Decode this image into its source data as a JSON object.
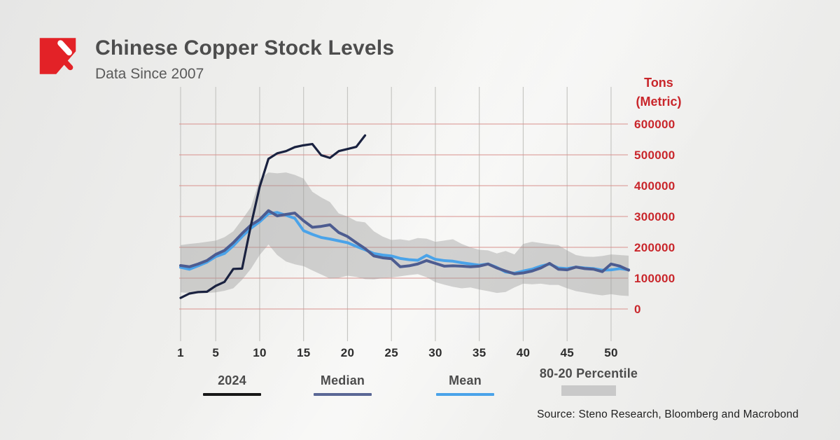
{
  "header": {
    "title": "Chinese Copper Stock Levels",
    "subtitle": "Data Since 2007"
  },
  "y_axis": {
    "title_line1": "Tons",
    "title_line2": "(Metric)",
    "labels": [
      "600000",
      "500000",
      "400000",
      "300000",
      "200000",
      "100000",
      "0"
    ],
    "color": "#c9262b"
  },
  "chart_data": {
    "type": "line",
    "x_ticks": [
      1,
      5,
      10,
      15,
      20,
      25,
      30,
      35,
      40,
      45,
      50
    ],
    "x_range": [
      1,
      52
    ],
    "ylim": [
      0,
      600000
    ],
    "y_gridline_step": 100000,
    "grid": "on",
    "legend_position": "bottom",
    "series": [
      {
        "name": "2024",
        "color": "#1a2240",
        "values": [
          36000,
          50000,
          55000,
          56000,
          75000,
          88000,
          130000,
          131000,
          271000,
          396000,
          487000,
          505000,
          512000,
          525000,
          531000,
          535000,
          499000,
          490000,
          512000,
          519000,
          526000,
          563000
        ]
      },
      {
        "name": "Median",
        "color": "#4d5c90",
        "values": [
          141000,
          137000,
          146000,
          157000,
          177000,
          190000,
          215000,
          245000,
          272000,
          290000,
          319000,
          302000,
          307000,
          311000,
          286000,
          265000,
          268000,
          273000,
          248000,
          235000,
          215000,
          196000,
          172000,
          166000,
          163000,
          137000,
          140000,
          146000,
          157000,
          148000,
          139000,
          140000,
          139000,
          137000,
          139000,
          146000,
          133000,
          123000,
          114000,
          117000,
          123000,
          133000,
          148000,
          129000,
          127000,
          136000,
          131000,
          129000,
          121000,
          146000,
          139000,
          126000
        ]
      },
      {
        "name": "Mean",
        "color": "#4aa3e9",
        "values": [
          135000,
          129000,
          140000,
          152000,
          170000,
          180000,
          205000,
          235000,
          262000,
          283000,
          309000,
          313000,
          304000,
          294000,
          254000,
          242000,
          232000,
          227000,
          221000,
          215000,
          203000,
          192000,
          180000,
          175000,
          172000,
          164000,
          160000,
          158000,
          174000,
          161000,
          157000,
          155000,
          150000,
          146000,
          142000,
          146000,
          135000,
          120000,
          116000,
          123000,
          129000,
          139000,
          146000,
          133000,
          131000,
          136000,
          133000,
          131000,
          126000,
          127000,
          131000,
          127000
        ]
      }
    ],
    "band": {
      "name": "80-20 Percentile",
      "color": "#9a9a9a",
      "upper": [
        207000,
        211000,
        214000,
        218000,
        222000,
        233000,
        252000,
        290000,
        330000,
        420000,
        443000,
        440000,
        443000,
        435000,
        423000,
        380000,
        362000,
        347000,
        310000,
        300000,
        285000,
        281000,
        252000,
        235000,
        224000,
        226000,
        222000,
        230000,
        228000,
        218000,
        222000,
        226000,
        211000,
        200000,
        192000,
        190000,
        180000,
        188000,
        177000,
        211000,
        218000,
        214000,
        210000,
        207000,
        190000,
        175000,
        170000,
        169000,
        172000,
        177000,
        175000,
        173000
      ],
      "lower": [
        54000,
        52000,
        50000,
        52000,
        54000,
        59000,
        67000,
        95000,
        130000,
        175000,
        209000,
        175000,
        154000,
        145000,
        139000,
        125000,
        112000,
        99000,
        101000,
        108000,
        104000,
        97000,
        96000,
        100000,
        102000,
        106000,
        110000,
        113000,
        103000,
        87000,
        79000,
        72000,
        67000,
        70000,
        63000,
        58000,
        52000,
        55000,
        70000,
        82000,
        80000,
        82000,
        78000,
        78000,
        67000,
        58000,
        53000,
        48000,
        44000,
        48000,
        44000,
        42000
      ]
    }
  },
  "legend": {
    "items": [
      {
        "label": "2024",
        "type": "line",
        "color": "#171717"
      },
      {
        "label": "Median",
        "type": "line",
        "color": "#5a6795"
      },
      {
        "label": "Mean",
        "type": "line",
        "color": "#4aa3e9"
      },
      {
        "label": "80-20 Percentile",
        "type": "band",
        "color": "#c9c9c9"
      }
    ]
  },
  "source": "Source: Steno Research, Bloomberg and Macrobond",
  "colors": {
    "brand_red": "#e32227",
    "axis_red": "#c9262b",
    "grid_red": "#d8918d",
    "grid_gray": "#c6c6c3",
    "x_label": "#2d2d2d"
  }
}
